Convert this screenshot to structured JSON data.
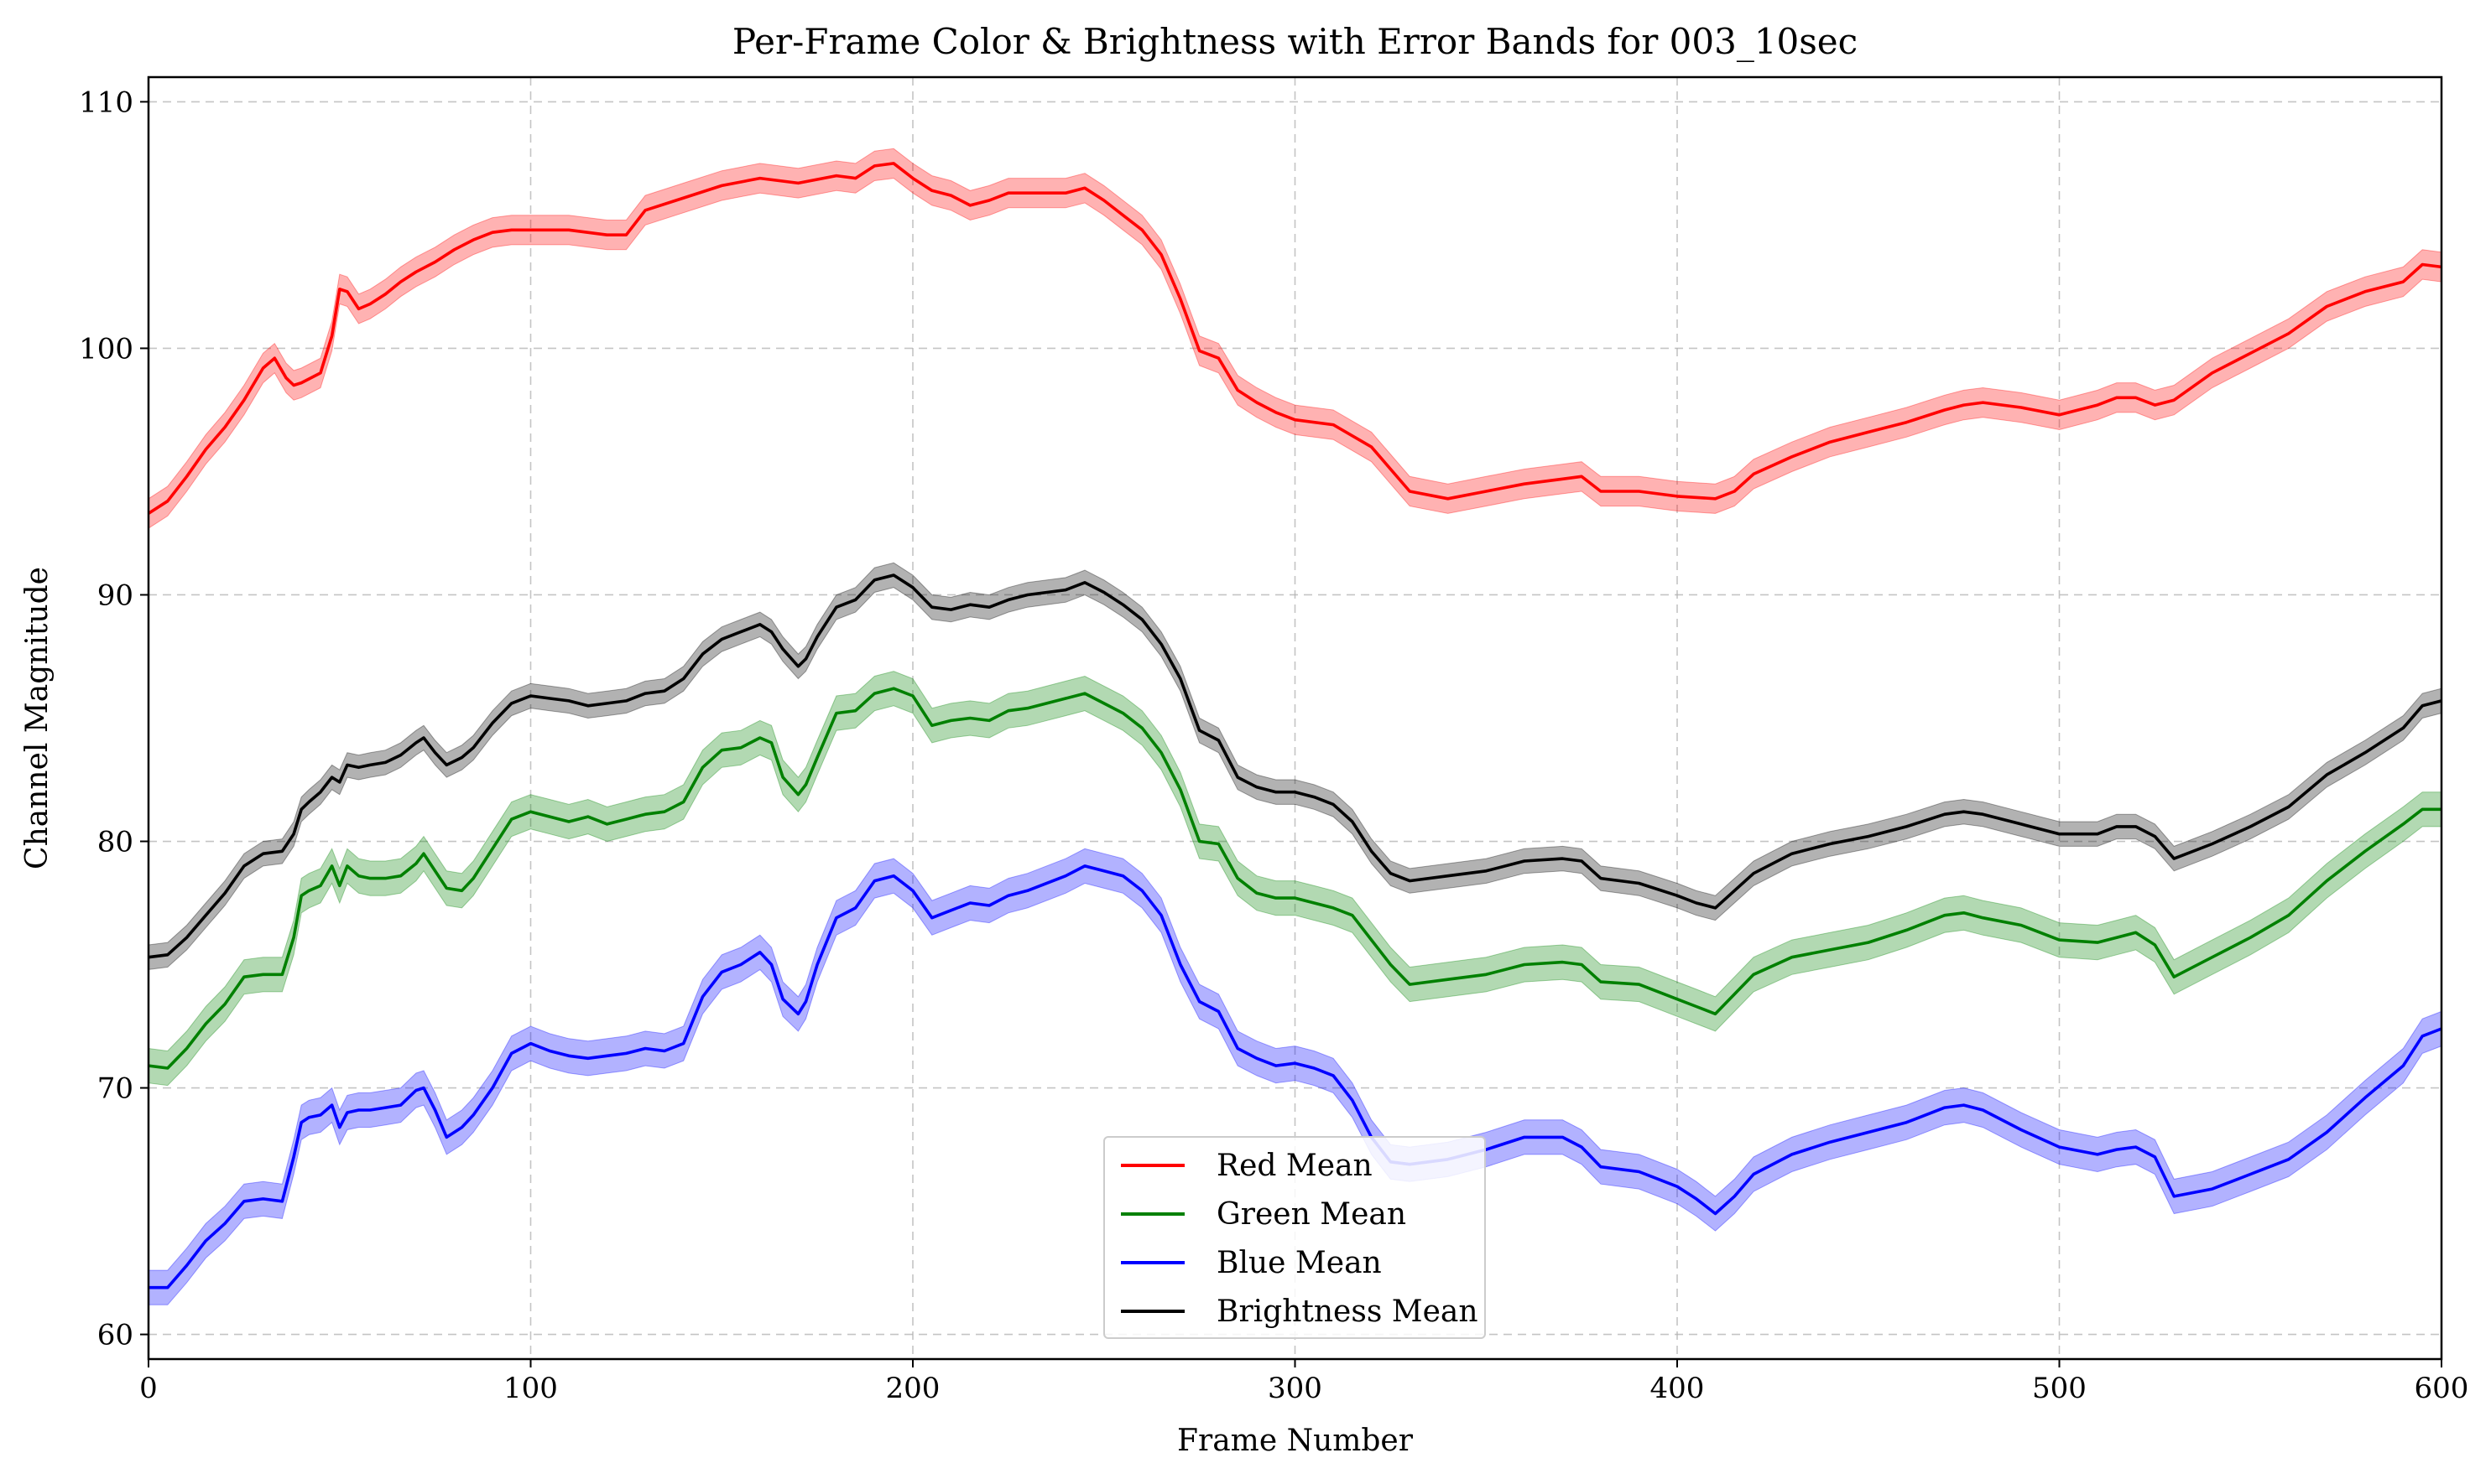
{
  "chart_data": {
    "type": "line",
    "title": "Per-Frame Color & Brightness with Error Bands for 003_10sec",
    "xlabel": "Frame Number",
    "ylabel": "Channel Magnitude",
    "xlim": [
      0,
      600
    ],
    "ylim": [
      59,
      111
    ],
    "xticks": [
      0,
      100,
      200,
      300,
      400,
      500,
      600
    ],
    "yticks": [
      60,
      70,
      80,
      90,
      100,
      110
    ],
    "grid": true,
    "legend_position": "bottom-center",
    "series": [
      {
        "name": "Red Mean",
        "color": "#ff0000",
        "band_color": "#ff0000",
        "band": 0.6,
        "x": [
          0,
          5,
          10,
          15,
          20,
          25,
          30,
          33,
          36,
          38,
          40,
          45,
          48,
          50,
          52,
          55,
          58,
          62,
          66,
          70,
          75,
          80,
          85,
          90,
          95,
          100,
          110,
          120,
          125,
          130,
          140,
          150,
          160,
          170,
          180,
          185,
          190,
          195,
          200,
          205,
          210,
          215,
          220,
          225,
          230,
          240,
          245,
          250,
          255,
          260,
          265,
          270,
          275,
          280,
          285,
          290,
          295,
          300,
          310,
          320,
          330,
          340,
          350,
          360,
          370,
          375,
          380,
          390,
          400,
          410,
          415,
          420,
          430,
          440,
          450,
          460,
          470,
          475,
          480,
          490,
          500,
          510,
          515,
          520,
          525,
          530,
          540,
          550,
          560,
          570,
          580,
          590,
          595,
          600
        ],
        "values": [
          93.3,
          93.8,
          94.8,
          95.9,
          96.8,
          97.9,
          99.2,
          99.6,
          98.8,
          98.5,
          98.6,
          99.0,
          100.5,
          102.4,
          102.3,
          101.6,
          101.8,
          102.2,
          102.7,
          103.1,
          103.5,
          104.0,
          104.4,
          104.7,
          104.8,
          104.8,
          104.8,
          104.6,
          104.6,
          105.6,
          106.1,
          106.6,
          106.9,
          106.7,
          107.0,
          106.9,
          107.4,
          107.5,
          106.9,
          106.4,
          106.2,
          105.8,
          106.0,
          106.3,
          106.3,
          106.3,
          106.5,
          106.0,
          105.4,
          104.8,
          103.8,
          102.0,
          99.9,
          99.6,
          98.3,
          97.8,
          97.4,
          97.1,
          96.9,
          96.0,
          94.2,
          93.9,
          94.2,
          94.5,
          94.7,
          94.8,
          94.2,
          94.2,
          94.0,
          93.9,
          94.2,
          94.9,
          95.6,
          96.2,
          96.6,
          97.0,
          97.5,
          97.7,
          97.8,
          97.6,
          97.3,
          97.7,
          98.0,
          98.0,
          97.7,
          97.9,
          99.0,
          99.8,
          100.6,
          101.7,
          102.3,
          102.7,
          103.4,
          103.3
        ]
      },
      {
        "name": "Green Mean",
        "color": "#008000",
        "band_color": "#008000",
        "band": 0.7,
        "x": [
          0,
          5,
          10,
          15,
          20,
          25,
          30,
          35,
          38,
          40,
          42,
          45,
          48,
          50,
          52,
          55,
          58,
          62,
          66,
          70,
          72,
          75,
          78,
          82,
          85,
          90,
          95,
          100,
          105,
          110,
          115,
          120,
          125,
          130,
          135,
          140,
          145,
          150,
          155,
          160,
          163,
          166,
          170,
          172,
          175,
          180,
          185,
          190,
          195,
          200,
          205,
          210,
          215,
          220,
          225,
          230,
          240,
          245,
          250,
          255,
          260,
          265,
          270,
          275,
          280,
          285,
          290,
          295,
          300,
          305,
          310,
          315,
          320,
          325,
          330,
          340,
          350,
          360,
          370,
          375,
          380,
          390,
          400,
          405,
          410,
          415,
          420,
          430,
          440,
          450,
          460,
          470,
          475,
          480,
          490,
          500,
          510,
          515,
          520,
          525,
          530,
          540,
          550,
          560,
          570,
          580,
          590,
          595,
          600
        ],
        "values": [
          70.9,
          70.8,
          71.6,
          72.6,
          73.4,
          74.5,
          74.6,
          74.6,
          76.1,
          77.8,
          78.0,
          78.2,
          79.0,
          78.2,
          79.0,
          78.6,
          78.5,
          78.5,
          78.6,
          79.1,
          79.5,
          78.8,
          78.1,
          78.0,
          78.5,
          79.7,
          80.9,
          81.2,
          81.0,
          80.8,
          81.0,
          80.7,
          80.9,
          81.1,
          81.2,
          81.6,
          83.0,
          83.7,
          83.8,
          84.2,
          84.0,
          82.6,
          81.9,
          82.3,
          83.4,
          85.2,
          85.3,
          86.0,
          86.2,
          85.9,
          84.7,
          84.9,
          85.0,
          84.9,
          85.3,
          85.4,
          85.8,
          86.0,
          85.6,
          85.2,
          84.6,
          83.6,
          82.1,
          80.0,
          79.9,
          78.5,
          77.9,
          77.7,
          77.7,
          77.5,
          77.3,
          77.0,
          76.0,
          75.0,
          74.2,
          74.4,
          74.6,
          75.0,
          75.1,
          75.0,
          74.3,
          74.2,
          73.6,
          73.3,
          73.0,
          73.8,
          74.6,
          75.3,
          75.6,
          75.9,
          76.4,
          77.0,
          77.1,
          76.9,
          76.6,
          76.0,
          75.9,
          76.1,
          76.3,
          75.8,
          74.5,
          75.3,
          76.1,
          77.0,
          78.4,
          79.6,
          80.7,
          81.3,
          81.3
        ]
      },
      {
        "name": "Blue Mean",
        "color": "#0000ff",
        "band_color": "#0000ff",
        "band": 0.7,
        "x": [
          0,
          5,
          10,
          15,
          20,
          25,
          30,
          35,
          38,
          40,
          42,
          45,
          48,
          50,
          52,
          55,
          58,
          62,
          66,
          70,
          72,
          75,
          78,
          82,
          85,
          90,
          95,
          100,
          105,
          110,
          115,
          120,
          125,
          130,
          135,
          140,
          145,
          150,
          155,
          160,
          163,
          166,
          170,
          172,
          175,
          180,
          185,
          190,
          195,
          200,
          205,
          210,
          215,
          220,
          225,
          230,
          240,
          245,
          250,
          255,
          260,
          265,
          270,
          275,
          280,
          285,
          290,
          295,
          300,
          305,
          310,
          315,
          320,
          325,
          330,
          340,
          350,
          360,
          370,
          375,
          380,
          390,
          400,
          405,
          410,
          415,
          420,
          430,
          440,
          450,
          460,
          470,
          475,
          480,
          490,
          500,
          510,
          515,
          520,
          525,
          530,
          540,
          550,
          560,
          570,
          580,
          590,
          595,
          600
        ],
        "values": [
          61.9,
          61.9,
          62.8,
          63.8,
          64.5,
          65.4,
          65.5,
          65.4,
          67.2,
          68.6,
          68.8,
          68.9,
          69.3,
          68.4,
          69.0,
          69.1,
          69.1,
          69.2,
          69.3,
          69.9,
          70.0,
          69.1,
          68.0,
          68.4,
          68.9,
          70.0,
          71.4,
          71.8,
          71.5,
          71.3,
          71.2,
          71.3,
          71.4,
          71.6,
          71.5,
          71.8,
          73.7,
          74.7,
          75.0,
          75.5,
          75.0,
          73.6,
          73.0,
          73.5,
          75.0,
          76.9,
          77.3,
          78.4,
          78.6,
          78.0,
          76.9,
          77.2,
          77.5,
          77.4,
          77.8,
          78.0,
          78.6,
          79.0,
          78.8,
          78.6,
          78.0,
          77.0,
          75.0,
          73.5,
          73.1,
          71.6,
          71.2,
          70.9,
          71.0,
          70.8,
          70.5,
          69.5,
          68.0,
          67.0,
          66.9,
          67.1,
          67.5,
          68.0,
          68.0,
          67.6,
          66.8,
          66.6,
          66.0,
          65.5,
          64.9,
          65.6,
          66.5,
          67.3,
          67.8,
          68.2,
          68.6,
          69.2,
          69.3,
          69.1,
          68.3,
          67.6,
          67.3,
          67.5,
          67.6,
          67.2,
          65.6,
          65.9,
          66.5,
          67.1,
          68.2,
          69.6,
          70.9,
          72.1,
          72.4
        ]
      },
      {
        "name": "Brightness Mean",
        "color": "#000000",
        "band_color": "#000000",
        "band": 0.5,
        "x": [
          0,
          5,
          10,
          15,
          20,
          25,
          30,
          35,
          38,
          40,
          42,
          45,
          48,
          50,
          52,
          55,
          58,
          62,
          66,
          70,
          72,
          75,
          78,
          82,
          85,
          90,
          95,
          100,
          105,
          110,
          115,
          120,
          125,
          130,
          135,
          140,
          145,
          150,
          155,
          160,
          163,
          166,
          170,
          172,
          175,
          180,
          185,
          190,
          195,
          200,
          205,
          210,
          215,
          220,
          225,
          230,
          240,
          245,
          250,
          255,
          260,
          265,
          270,
          275,
          280,
          285,
          290,
          295,
          300,
          305,
          310,
          315,
          320,
          325,
          330,
          340,
          350,
          360,
          370,
          375,
          380,
          390,
          400,
          405,
          410,
          415,
          420,
          430,
          440,
          450,
          460,
          470,
          475,
          480,
          490,
          500,
          510,
          515,
          520,
          525,
          530,
          540,
          550,
          560,
          570,
          580,
          590,
          595,
          600
        ],
        "values": [
          75.3,
          75.4,
          76.1,
          77.0,
          77.9,
          79.0,
          79.5,
          79.6,
          80.3,
          81.3,
          81.6,
          82.0,
          82.6,
          82.4,
          83.1,
          83.0,
          83.1,
          83.2,
          83.5,
          84.0,
          84.2,
          83.6,
          83.1,
          83.4,
          83.8,
          84.8,
          85.6,
          85.9,
          85.8,
          85.7,
          85.5,
          85.6,
          85.7,
          86.0,
          86.1,
          86.6,
          87.6,
          88.2,
          88.5,
          88.8,
          88.5,
          87.8,
          87.1,
          87.4,
          88.3,
          89.5,
          89.8,
          90.6,
          90.8,
          90.3,
          89.5,
          89.4,
          89.6,
          89.5,
          89.8,
          90.0,
          90.2,
          90.5,
          90.1,
          89.6,
          89.0,
          88.0,
          86.6,
          84.5,
          84.1,
          82.6,
          82.2,
          82.0,
          82.0,
          81.8,
          81.5,
          80.8,
          79.6,
          78.7,
          78.4,
          78.6,
          78.8,
          79.2,
          79.3,
          79.2,
          78.5,
          78.3,
          77.8,
          77.5,
          77.3,
          78.0,
          78.7,
          79.5,
          79.9,
          80.2,
          80.6,
          81.1,
          81.2,
          81.1,
          80.7,
          80.3,
          80.3,
          80.6,
          80.6,
          80.2,
          79.3,
          79.9,
          80.6,
          81.4,
          82.7,
          83.6,
          84.6,
          85.5,
          85.7
        ]
      }
    ]
  }
}
